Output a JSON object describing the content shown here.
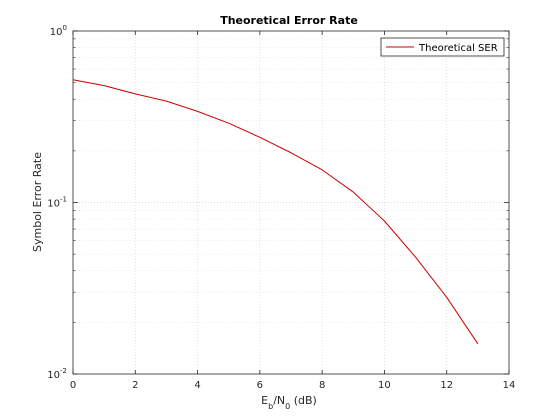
{
  "chart_data": {
    "type": "line",
    "title": "Theoretical Error Rate",
    "xlabel": {
      "main": "E",
      "sub1": "b",
      "mid": "/N",
      "sub2": "0",
      "tail": " (dB)"
    },
    "ylabel": "Symbol Error Rate",
    "xlim": [
      0,
      14
    ],
    "ylim": [
      0.01,
      1
    ],
    "yscale": "log",
    "grid": true,
    "legend_position": "top-right",
    "x_ticks": [
      0,
      2,
      4,
      6,
      8,
      10,
      12,
      14
    ],
    "y_ticks": [
      {
        "base": "10",
        "exp": "-2",
        "value": 0.01
      },
      {
        "base": "10",
        "exp": "-1",
        "value": 0.1
      },
      {
        "base": "10",
        "exp": "0",
        "value": 1
      }
    ],
    "series": [
      {
        "name": "Theoretical SER",
        "color": "#cc0000",
        "x": [
          0,
          1,
          2,
          3,
          4,
          5,
          6,
          7,
          8,
          9,
          10,
          11,
          12,
          13
        ],
        "values": [
          0.52,
          0.48,
          0.43,
          0.39,
          0.34,
          0.29,
          0.24,
          0.195,
          0.155,
          0.115,
          0.078,
          0.048,
          0.028,
          0.015
        ]
      }
    ]
  }
}
